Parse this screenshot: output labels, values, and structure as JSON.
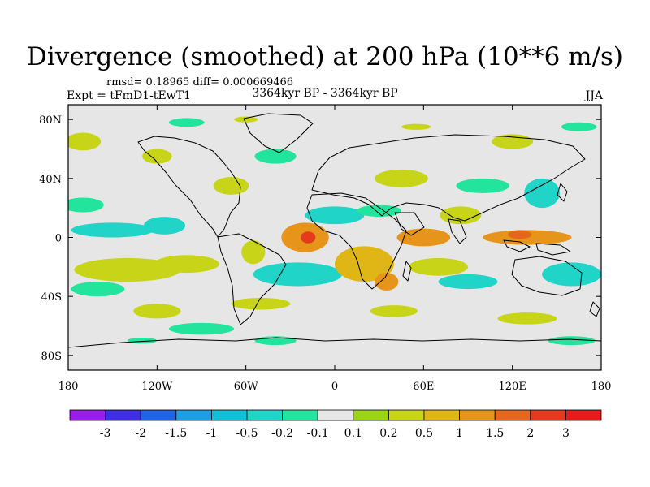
{
  "header": {
    "title": "Divergence (smoothed) at 200 hPa (10**6 m/s)",
    "stats": "rmsd= 0.18965 diff= 0.000669466",
    "expt": "Expt = tFmD1-tEwT1",
    "period": "3364kyr BP - 3364kyr BP",
    "season": "JJA"
  },
  "chart_data": {
    "type": "heatmap",
    "title": "Divergence (smoothed) at 200 hPa (10**6 m/s)",
    "subtitle": "3364kyr BP - 3364kyr BP",
    "xlabel": "",
    "ylabel": "",
    "xlim": [
      -180,
      180
    ],
    "ylim": [
      -90,
      90
    ],
    "x_ticks": [
      {
        "v": -180,
        "label": "180"
      },
      {
        "v": -120,
        "label": "120W"
      },
      {
        "v": -60,
        "label": "60W"
      },
      {
        "v": 0,
        "label": "0"
      },
      {
        "v": 60,
        "label": "60E"
      },
      {
        "v": 120,
        "label": "120E"
      },
      {
        "v": 180,
        "label": "180"
      }
    ],
    "y_ticks": [
      {
        "v": 80,
        "label": "80N"
      },
      {
        "v": 40,
        "label": "40N"
      },
      {
        "v": 0,
        "label": "0"
      },
      {
        "v": -40,
        "label": "40S"
      },
      {
        "v": -80,
        "label": "80S"
      }
    ],
    "colorbar": {
      "labels": [
        "-3",
        "-2",
        "-1.5",
        "-1",
        "-0.5",
        "-0.2",
        "-0.1",
        "0.1",
        "0.2",
        "0.5",
        "1",
        "1.5",
        "2",
        "3"
      ],
      "colors": [
        "#9b1be8",
        "#3f2ee2",
        "#1e64e6",
        "#1c9ee4",
        "#12bfd9",
        "#20d5c8",
        "#22e49c",
        "#e6e6e6",
        "#9ad414",
        "#c8d418",
        "#e0b616",
        "#e6941a",
        "#e6661c",
        "#e63a1e",
        "#e61c1c"
      ]
    },
    "fields": [
      {
        "lon": -140,
        "lat": -22,
        "rx": 36,
        "ry": 8,
        "level": 0.2
      },
      {
        "lon": -100,
        "lat": -18,
        "rx": 22,
        "ry": 6,
        "level": 0.2
      },
      {
        "lon": -55,
        "lat": -10,
        "rx": 8,
        "ry": 8,
        "level": 0.2
      },
      {
        "lon": -150,
        "lat": 5,
        "rx": 28,
        "ry": 5,
        "level": -0.5
      },
      {
        "lon": -115,
        "lat": 8,
        "rx": 14,
        "ry": 6,
        "level": -0.5
      },
      {
        "lon": -170,
        "lat": 22,
        "rx": 14,
        "ry": 5,
        "level": -0.2
      },
      {
        "lon": -160,
        "lat": -35,
        "rx": 18,
        "ry": 5,
        "level": -0.2
      },
      {
        "lon": -120,
        "lat": -50,
        "rx": 16,
        "ry": 5,
        "level": 0.2
      },
      {
        "lon": -170,
        "lat": 65,
        "rx": 12,
        "ry": 6,
        "level": 0.2
      },
      {
        "lon": -120,
        "lat": 55,
        "rx": 10,
        "ry": 5,
        "level": 0.2
      },
      {
        "lon": -100,
        "lat": 78,
        "rx": 12,
        "ry": 3,
        "level": -0.2
      },
      {
        "lon": -70,
        "lat": 35,
        "rx": 12,
        "ry": 6,
        "level": 0.2
      },
      {
        "lon": -40,
        "lat": 55,
        "rx": 14,
        "ry": 5,
        "level": -0.2
      },
      {
        "lon": -20,
        "lat": 0,
        "rx": 16,
        "ry": 10,
        "level": 1
      },
      {
        "lon": -18,
        "lat": 0,
        "rx": 5,
        "ry": 4,
        "level": 2
      },
      {
        "lon": -25,
        "lat": -25,
        "rx": 30,
        "ry": 8,
        "level": -0.5
      },
      {
        "lon": -50,
        "lat": -45,
        "rx": 20,
        "ry": 4,
        "level": 0.2
      },
      {
        "lon": -90,
        "lat": -62,
        "rx": 22,
        "ry": 4,
        "level": -0.2
      },
      {
        "lon": -40,
        "lat": -70,
        "rx": 14,
        "ry": 3,
        "level": -0.2
      },
      {
        "lon": 0,
        "lat": 15,
        "rx": 20,
        "ry": 6,
        "level": -0.5
      },
      {
        "lon": 45,
        "lat": 40,
        "rx": 18,
        "ry": 6,
        "level": 0.2
      },
      {
        "lon": 30,
        "lat": 18,
        "rx": 15,
        "ry": 4,
        "level": -0.2
      },
      {
        "lon": 20,
        "lat": -18,
        "rx": 20,
        "ry": 12,
        "level": 0.5
      },
      {
        "lon": 35,
        "lat": -30,
        "rx": 8,
        "ry": 6,
        "level": 1
      },
      {
        "lon": 60,
        "lat": 0,
        "rx": 18,
        "ry": 6,
        "level": 1
      },
      {
        "lon": 70,
        "lat": -20,
        "rx": 20,
        "ry": 6,
        "level": 0.2
      },
      {
        "lon": 85,
        "lat": 15,
        "rx": 14,
        "ry": 6,
        "level": 0.2
      },
      {
        "lon": 90,
        "lat": -30,
        "rx": 20,
        "ry": 5,
        "level": -0.5
      },
      {
        "lon": 100,
        "lat": 35,
        "rx": 18,
        "ry": 5,
        "level": -0.2
      },
      {
        "lon": 120,
        "lat": 65,
        "rx": 14,
        "ry": 5,
        "level": 0.2
      },
      {
        "lon": 140,
        "lat": 30,
        "rx": 12,
        "ry": 10,
        "level": -0.5
      },
      {
        "lon": 130,
        "lat": 0,
        "rx": 30,
        "ry": 5,
        "level": 1
      },
      {
        "lon": 125,
        "lat": 2,
        "rx": 8,
        "ry": 3,
        "level": 1.5
      },
      {
        "lon": 160,
        "lat": -25,
        "rx": 20,
        "ry": 8,
        "level": -0.5
      },
      {
        "lon": 165,
        "lat": 75,
        "rx": 12,
        "ry": 3,
        "level": -0.2
      },
      {
        "lon": 130,
        "lat": -55,
        "rx": 20,
        "ry": 4,
        "level": 0.2
      },
      {
        "lon": 40,
        "lat": -50,
        "rx": 16,
        "ry": 4,
        "level": 0.2
      },
      {
        "lon": 160,
        "lat": -70,
        "rx": 16,
        "ry": 3,
        "level": -0.2
      },
      {
        "lon": -60,
        "lat": 80,
        "rx": 8,
        "ry": 2,
        "level": 0.2
      },
      {
        "lon": 55,
        "lat": 75,
        "rx": 10,
        "ry": 2,
        "level": 0.2
      },
      {
        "lon": -130,
        "lat": -70,
        "rx": 10,
        "ry": 2,
        "level": -0.2
      }
    ]
  }
}
